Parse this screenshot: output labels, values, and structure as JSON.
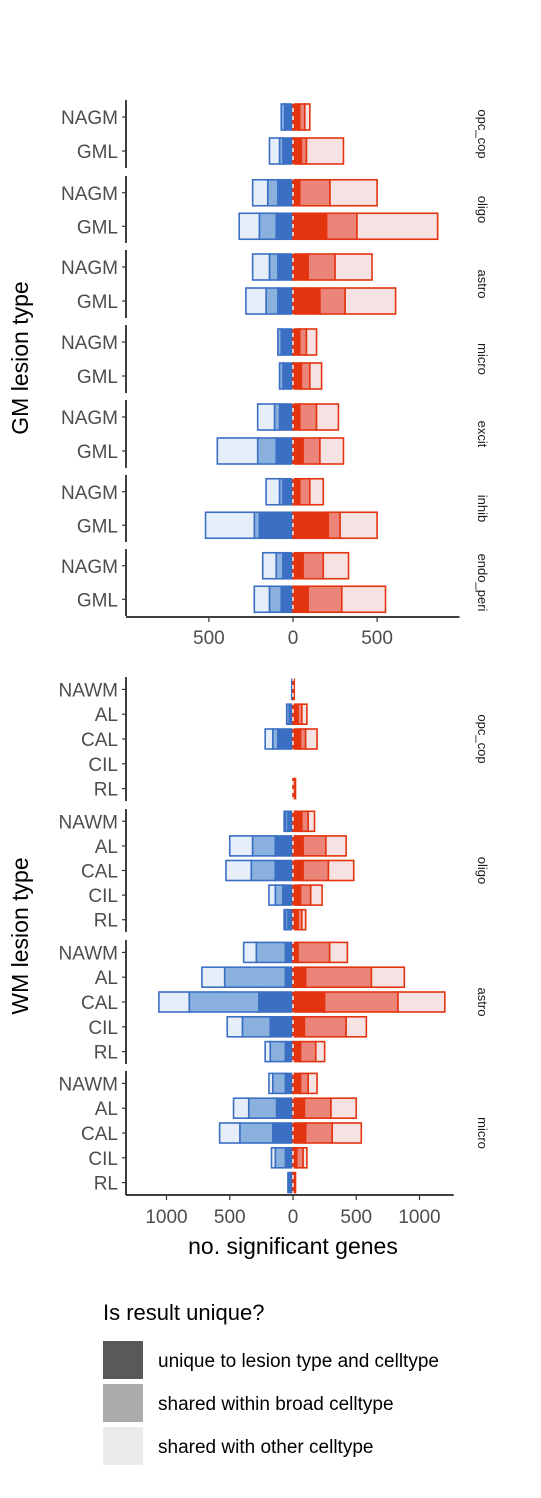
{
  "colors": {
    "blue": {
      "unique": "#3b6fc4",
      "broad": "#8ab0de",
      "other": "#e6eef9",
      "border": "#3b6fc4"
    },
    "red": {
      "unique": "#e3340f",
      "broad": "#ec8579",
      "other": "#f6e2e3",
      "border": "#e3340f"
    },
    "legend": {
      "unique": "#595959",
      "broad": "#ababab",
      "other": "#ebebeb"
    }
  },
  "legend": {
    "title": "Is result unique?",
    "items": [
      {
        "key": "unique",
        "label": "unique to lesion type and celltype"
      },
      {
        "key": "broad",
        "label": "shared within broad celltype"
      },
      {
        "key": "other",
        "label": "shared with other celltype"
      }
    ]
  },
  "chart_data": [
    {
      "type": "bar",
      "orientation": "horizontal-diverging",
      "ylabel": "GM lesion type",
      "xlabel": "",
      "xlim": [
        -990,
        990
      ],
      "xticks": [
        -500,
        0,
        500
      ],
      "xtick_labels": [
        "500",
        "0",
        "500"
      ],
      "stack_order": [
        "unique",
        "broad",
        "other"
      ],
      "note": "negative side = downregulated genes, positive side = upregulated genes",
      "facets": [
        {
          "label": "opc_cop",
          "rows": [
            {
              "label": "NAGM",
              "down": [
                50,
                20,
                0
              ],
              "up": [
                40,
                30,
                30
              ]
            },
            {
              "label": "GML",
              "down": [
                60,
                20,
                60
              ],
              "up": [
                50,
                30,
                220
              ]
            }
          ]
        },
        {
          "label": "oligo",
          "rows": [
            {
              "label": "NAGM",
              "down": [
                90,
                60,
                90
              ],
              "up": [
                40,
                180,
                280
              ]
            },
            {
              "label": "GML",
              "down": [
                100,
                100,
                120
              ],
              "up": [
                200,
                180,
                480
              ]
            }
          ]
        },
        {
          "label": "astro",
          "rows": [
            {
              "label": "NAGM",
              "down": [
                90,
                50,
                100
              ],
              "up": [
                90,
                160,
                220
              ]
            },
            {
              "label": "GML",
              "down": [
                90,
                70,
                120
              ],
              "up": [
                160,
                150,
                300
              ]
            }
          ]
        },
        {
          "label": "micro",
          "rows": [
            {
              "label": "NAGM",
              "down": [
                70,
                20,
                0
              ],
              "up": [
                40,
                40,
                60
              ]
            },
            {
              "label": "GML",
              "down": [
                60,
                20,
                0
              ],
              "up": [
                50,
                50,
                70
              ]
            }
          ]
        },
        {
          "label": "excit",
          "rows": [
            {
              "label": "NAGM",
              "down": [
                80,
                30,
                100
              ],
              "up": [
                40,
                100,
                130
              ]
            },
            {
              "label": "GML",
              "down": [
                100,
                110,
                240
              ],
              "up": [
                60,
                100,
                140
              ]
            }
          ]
        },
        {
          "label": "inhib",
          "rows": [
            {
              "label": "NAGM",
              "down": [
                60,
                20,
                80
              ],
              "up": [
                40,
                60,
                80
              ]
            },
            {
              "label": "GML",
              "down": [
                200,
                30,
                290
              ],
              "up": [
                210,
                70,
                220
              ]
            }
          ]
        },
        {
          "label": "endo_peri",
          "rows": [
            {
              "label": "NAGM",
              "down": [
                60,
                40,
                80
              ],
              "up": [
                60,
                120,
                150
              ]
            },
            {
              "label": "GML",
              "down": [
                70,
                70,
                90
              ],
              "up": [
                90,
                200,
                260
              ]
            }
          ]
        }
      ]
    },
    {
      "type": "bar",
      "orientation": "horizontal-diverging",
      "ylabel": "WM lesion type",
      "xlabel": "no. significant genes",
      "xlim": [
        -1380,
        1270
      ],
      "xticks": [
        -1000,
        -500,
        0,
        500,
        1000
      ],
      "xtick_labels": [
        "1000",
        "500",
        "0",
        "500",
        "1000"
      ],
      "stack_order": [
        "unique",
        "broad",
        "other"
      ],
      "note": "negative side = downregulated genes, positive side = upregulated genes",
      "facets": [
        {
          "label": "opc_cop",
          "rows": [
            {
              "label": "NAWM",
              "down": [
                10,
                0,
                0
              ],
              "up": [
                10,
                0,
                0
              ]
            },
            {
              "label": "AL",
              "down": [
                30,
                20,
                0
              ],
              "up": [
                40,
                30,
                40
              ]
            },
            {
              "label": "CAL",
              "down": [
                120,
                40,
                60
              ],
              "up": [
                60,
                40,
                90
              ]
            },
            {
              "label": "CIL",
              "down": [
                0,
                0,
                0
              ],
              "up": [
                0,
                0,
                0
              ]
            },
            {
              "label": "RL",
              "down": [
                0,
                0,
                0
              ],
              "up": [
                20,
                0,
                0
              ]
            }
          ]
        },
        {
          "label": "oligo",
          "rows": [
            {
              "label": "NAWM",
              "down": [
                40,
                20,
                10
              ],
              "up": [
                70,
                50,
                50
              ]
            },
            {
              "label": "AL",
              "down": [
                140,
                180,
                180
              ],
              "up": [
                80,
                180,
                160
              ]
            },
            {
              "label": "CAL",
              "down": [
                140,
                190,
                200
              ],
              "up": [
                80,
                200,
                200
              ]
            },
            {
              "label": "CIL",
              "down": [
                80,
                60,
                50
              ],
              "up": [
                60,
                80,
                90
              ]
            },
            {
              "label": "RL",
              "down": [
                40,
                20,
                10
              ],
              "up": [
                40,
                30,
                30
              ]
            }
          ]
        },
        {
          "label": "astro",
          "rows": [
            {
              "label": "NAWM",
              "down": [
                60,
                230,
                100
              ],
              "up": [
                40,
                250,
                140
              ]
            },
            {
              "label": "AL",
              "down": [
                60,
                480,
                180
              ],
              "up": [
                100,
                520,
                260
              ]
            },
            {
              "label": "CAL",
              "down": [
                270,
                550,
                240
              ],
              "up": [
                250,
                580,
                370
              ]
            },
            {
              "label": "CIL",
              "down": [
                180,
                220,
                120
              ],
              "up": [
                90,
                330,
                160
              ]
            },
            {
              "label": "RL",
              "down": [
                60,
                120,
                40
              ],
              "up": [
                60,
                120,
                70
              ]
            }
          ]
        },
        {
          "label": "micro",
          "rows": [
            {
              "label": "NAWM",
              "down": [
                60,
                100,
                30
              ],
              "up": [
                60,
                60,
                70
              ]
            },
            {
              "label": "AL",
              "down": [
                130,
                220,
                120
              ],
              "up": [
                90,
                210,
                200
              ]
            },
            {
              "label": "CAL",
              "down": [
                160,
                260,
                160
              ],
              "up": [
                100,
                210,
                230
              ]
            },
            {
              "label": "CIL",
              "down": [
                60,
                80,
                30
              ],
              "up": [
                30,
                50,
                30
              ]
            },
            {
              "label": "RL",
              "down": [
                30,
                10,
                0
              ],
              "up": [
                20,
                0,
                0
              ]
            }
          ]
        }
      ]
    }
  ]
}
